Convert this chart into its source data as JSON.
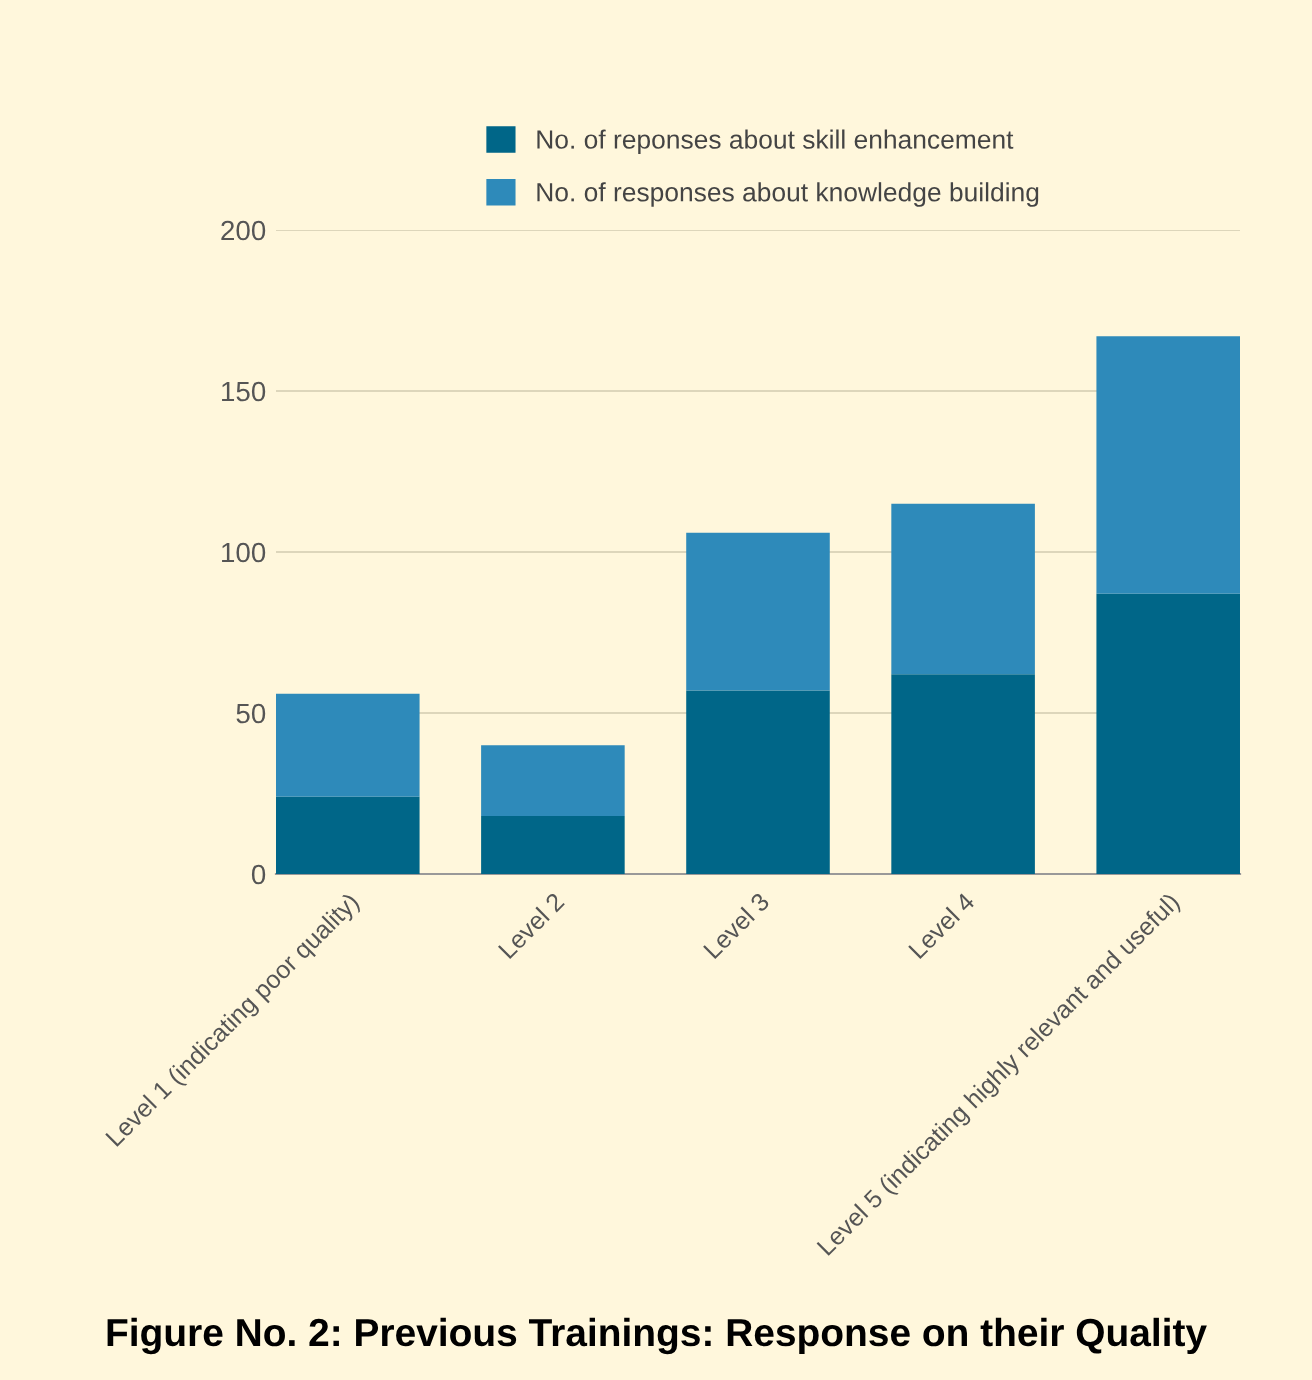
{
  "chart_data": {
    "type": "bar",
    "title": "Figure No. 2: Previous Trainings: Response on their Quality",
    "categories": [
      "Level 1 (indicating poor quality)",
      "Level 2",
      "Level 3",
      "Level 4",
      "Level 5 (indicating highly relevant and useful)"
    ],
    "series": [
      {
        "name": "No. of reponses about skill enhancement",
        "color": "#006688",
        "values": [
          24,
          18,
          57,
          62,
          87
        ]
      },
      {
        "name": "No. of responses about knowledge building",
        "color": "#2e8aba",
        "values": [
          32,
          22,
          49,
          53,
          80
        ]
      }
    ],
    "stacked": true,
    "ylim": [
      0,
      200
    ],
    "yticks": [
      0,
      50,
      100,
      150,
      200
    ],
    "grid": "y",
    "legend": "top"
  }
}
